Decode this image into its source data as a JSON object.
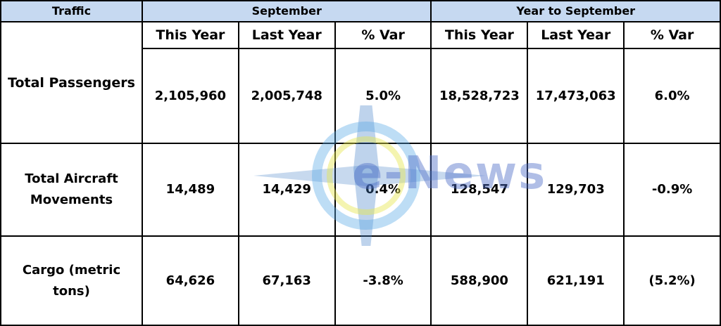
{
  "header": {
    "cells": [
      "Traffic",
      "September",
      "Year to September"
    ]
  },
  "subheader": [
    "This Year",
    "Last Year",
    "% Var",
    "This Year",
    "Last Year",
    "% Var"
  ],
  "rows": [
    [
      "Total Passengers",
      "2,105,960",
      "2,005,748",
      "5.0%",
      "18,528,723",
      "17,473,063",
      "6.0%"
    ],
    [
      "Total Aircraft Movements",
      "14,489",
      "14,429",
      "0.4%",
      "128,547",
      "129,703",
      "-0.9%"
    ],
    [
      "Cargo (metric tons)",
      "64,626",
      "67,163",
      "-3.8%",
      "588,900",
      "621,191",
      "(5.2%)"
    ]
  ],
  "watermark": "e-News"
}
